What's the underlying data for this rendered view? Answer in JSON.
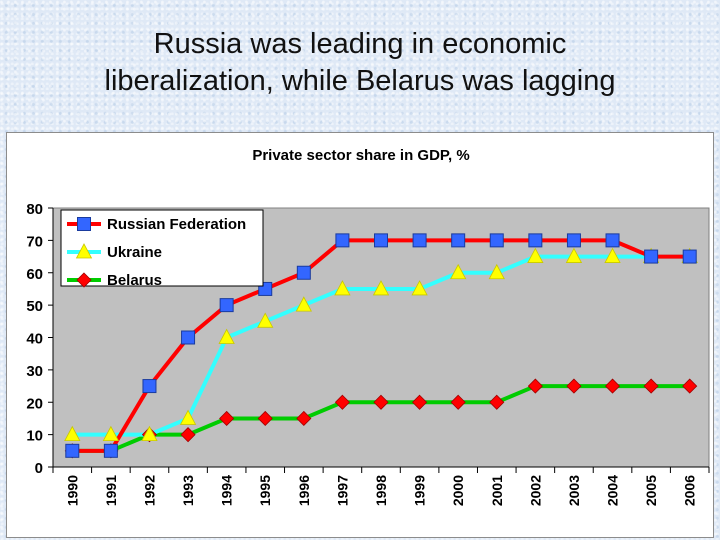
{
  "slide": {
    "title_line1": "Russia was leading in economic",
    "title_line2": "liberalization, while Belarus was lagging"
  },
  "chart_data": {
    "type": "line",
    "title": "Private sector share in GDP, %",
    "xlabel": "",
    "ylabel": "",
    "x": [
      "1990",
      "1991",
      "1992",
      "1993",
      "1994",
      "1995",
      "1996",
      "1997",
      "1998",
      "1999",
      "2000",
      "2001",
      "2002",
      "2003",
      "2004",
      "2005",
      "2006"
    ],
    "ylim": [
      0,
      80
    ],
    "yticks": [
      0,
      10,
      20,
      30,
      40,
      50,
      60,
      70,
      80
    ],
    "grid": false,
    "plot_background": "#c0c0c0",
    "legend_position": "top-left",
    "series": [
      {
        "name": "Russian Federation",
        "line_color": "#ff0000",
        "marker": "square",
        "marker_color": "#3366ff",
        "values": [
          5,
          5,
          25,
          40,
          50,
          55,
          60,
          70,
          70,
          70,
          70,
          70,
          70,
          70,
          70,
          65,
          65
        ]
      },
      {
        "name": "Ukraine",
        "line_color": "#33ffff",
        "marker": "triangle",
        "marker_color": "#ffff00",
        "values": [
          10,
          10,
          10,
          15,
          40,
          45,
          50,
          55,
          55,
          55,
          60,
          60,
          65,
          65,
          65,
          65,
          65
        ]
      },
      {
        "name": "Belarus",
        "line_color": "#00cc00",
        "marker": "diamond",
        "marker_color": "#ff0000",
        "values": [
          5,
          5,
          10,
          10,
          15,
          15,
          15,
          20,
          20,
          20,
          20,
          20,
          25,
          25,
          25,
          25,
          25
        ]
      }
    ]
  }
}
